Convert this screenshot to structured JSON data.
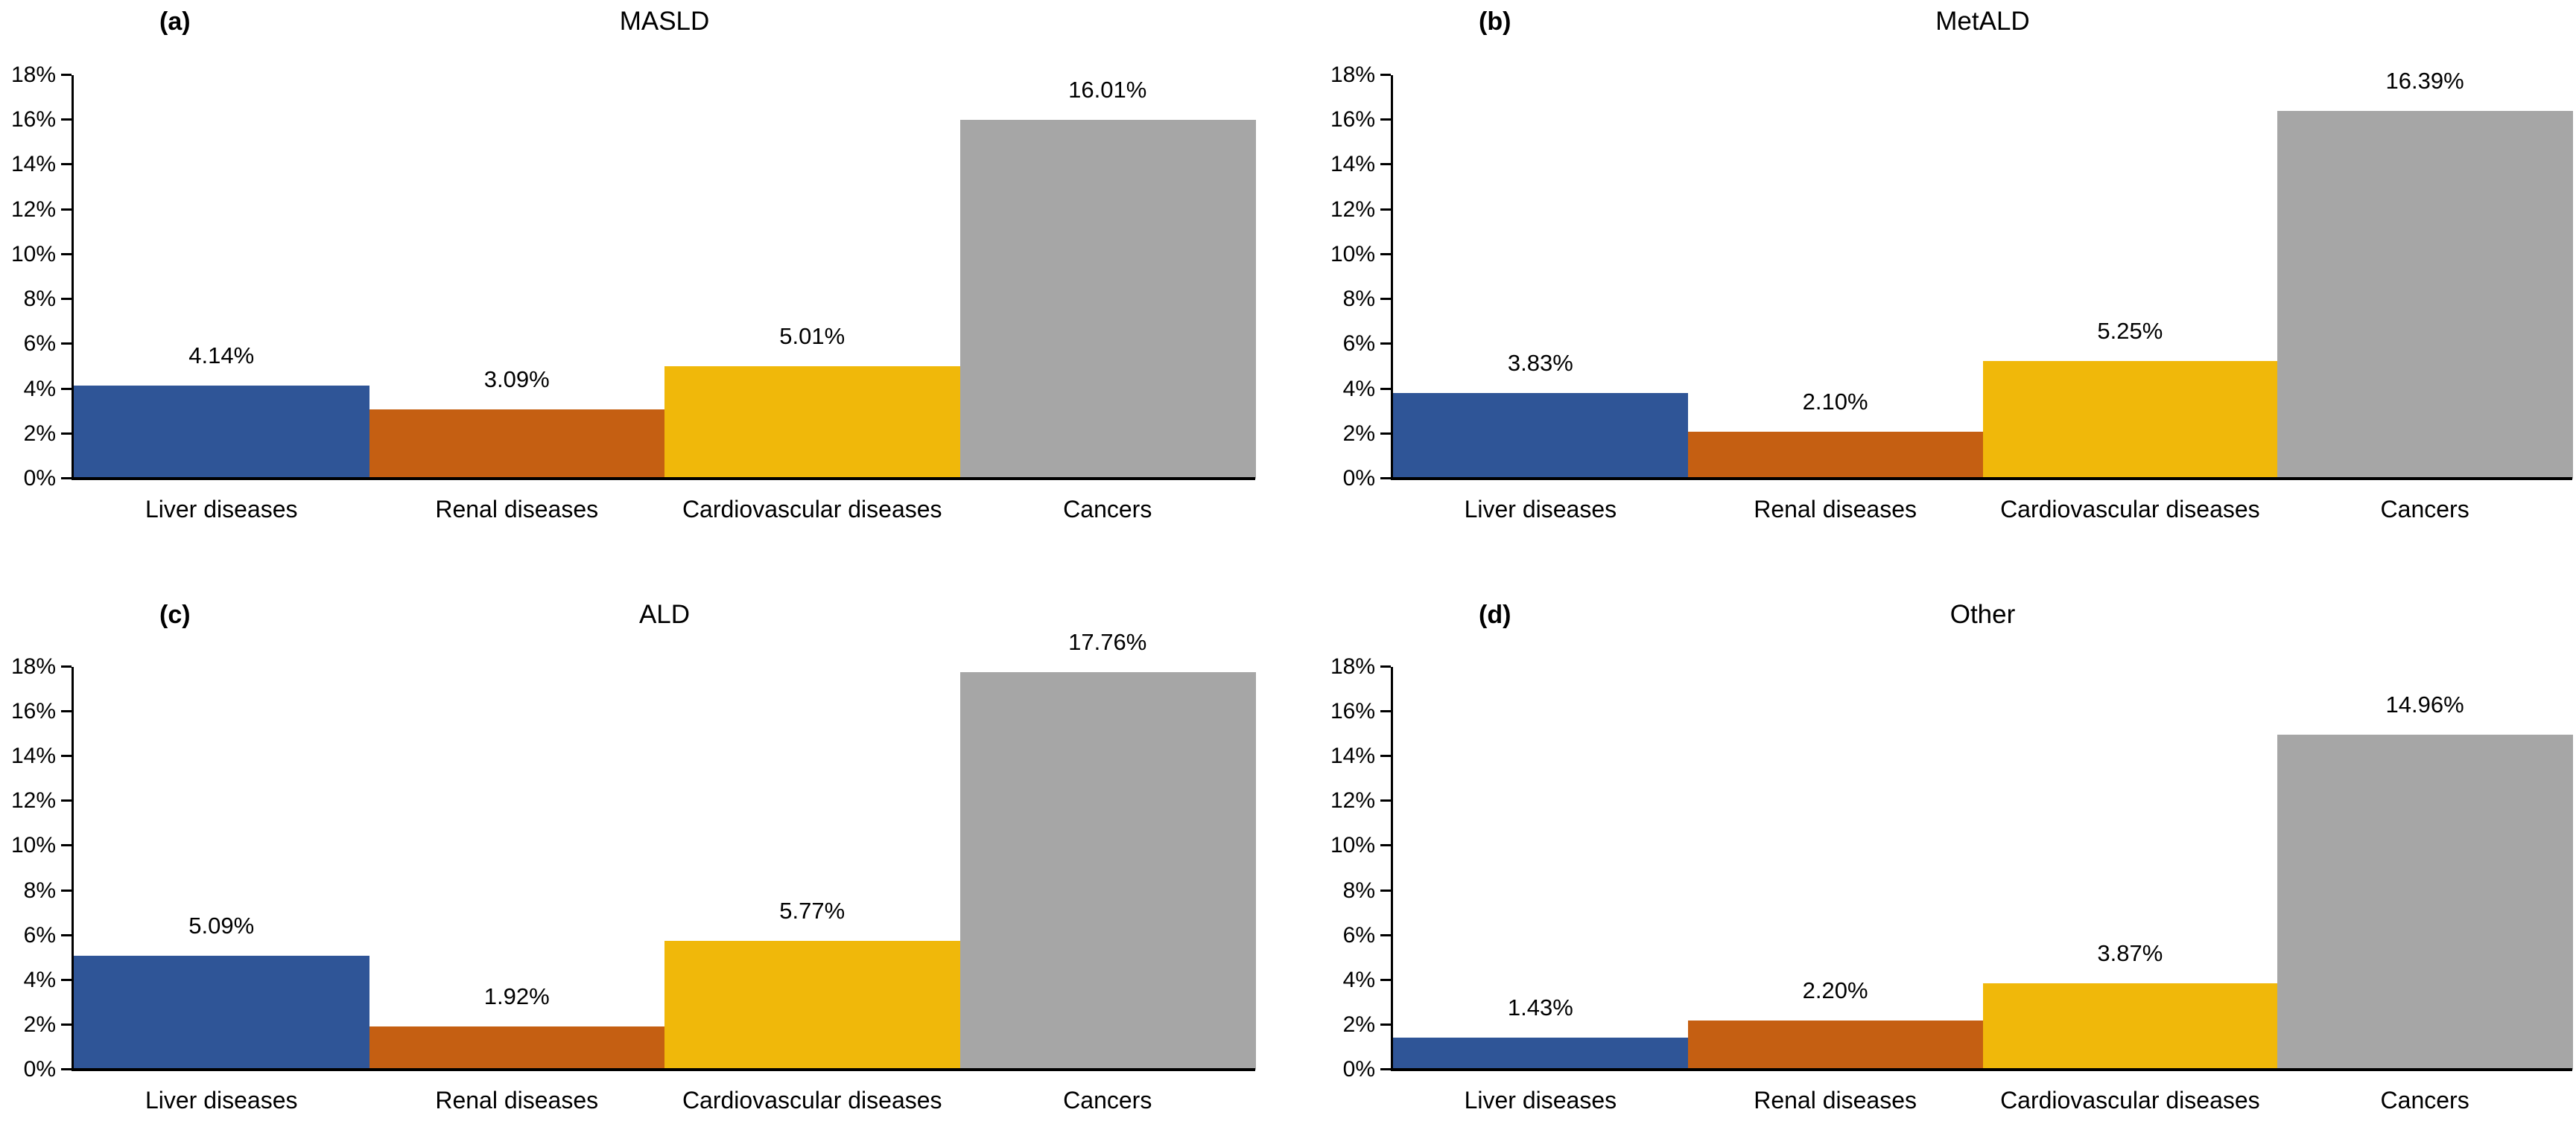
{
  "chart_data": [
    {
      "type": "bar",
      "panel_label": "(a)",
      "title": "MASLD",
      "categories": [
        "Liver diseases",
        "Renal diseases",
        "Cardiovascular diseases",
        "Cancers"
      ],
      "values": [
        4.14,
        3.09,
        5.01,
        16.01
      ],
      "data_labels": [
        "4.14%",
        "3.09%",
        "5.01%",
        "16.01%"
      ],
      "unit": "percent",
      "ylim": [
        0,
        18
      ],
      "ytick_step": 2,
      "ytick_labels": [
        "0%",
        "2%",
        "4%",
        "6%",
        "8%",
        "10%",
        "12%",
        "14%",
        "16%",
        "18%"
      ],
      "grid": false,
      "legend": false,
      "bar_colors": [
        "#2F5597",
        "#C55F12",
        "#F0B80A",
        "#A6A6A6"
      ]
    },
    {
      "type": "bar",
      "panel_label": "(b)",
      "title": "MetALD",
      "categories": [
        "Liver diseases",
        "Renal diseases",
        "Cardiovascular diseases",
        "Cancers"
      ],
      "values": [
        3.83,
        2.1,
        5.25,
        16.39
      ],
      "data_labels": [
        "3.83%",
        "2.10%",
        "5.25%",
        "16.39%"
      ],
      "unit": "percent",
      "ylim": [
        0,
        18
      ],
      "ytick_step": 2,
      "ytick_labels": [
        "0%",
        "2%",
        "4%",
        "6%",
        "8%",
        "10%",
        "12%",
        "14%",
        "16%",
        "18%"
      ],
      "grid": false,
      "legend": false,
      "bar_colors": [
        "#2F5597",
        "#C55F12",
        "#F0B80A",
        "#A6A6A6"
      ]
    },
    {
      "type": "bar",
      "panel_label": "(c)",
      "title": "ALD",
      "categories": [
        "Liver diseases",
        "Renal diseases",
        "Cardiovascular diseases",
        "Cancers"
      ],
      "values": [
        5.09,
        1.92,
        5.77,
        17.76
      ],
      "data_labels": [
        "5.09%",
        "1.92%",
        "5.77%",
        "17.76%"
      ],
      "unit": "percent",
      "ylim": [
        0,
        18
      ],
      "ytick_step": 2,
      "ytick_labels": [
        "0%",
        "2%",
        "4%",
        "6%",
        "8%",
        "10%",
        "12%",
        "14%",
        "16%",
        "18%"
      ],
      "grid": false,
      "legend": false,
      "bar_colors": [
        "#2F5597",
        "#C55F12",
        "#F0B80A",
        "#A6A6A6"
      ]
    },
    {
      "type": "bar",
      "panel_label": "(d)",
      "title": "Other",
      "categories": [
        "Liver diseases",
        "Renal diseases",
        "Cardiovascular diseases",
        "Cancers"
      ],
      "values": [
        1.43,
        2.2,
        3.87,
        14.96
      ],
      "data_labels": [
        "1.43%",
        "2.20%",
        "3.87%",
        "14.96%"
      ],
      "unit": "percent",
      "ylim": [
        0,
        18
      ],
      "ytick_step": 2,
      "ytick_labels": [
        "0%",
        "2%",
        "4%",
        "6%",
        "8%",
        "10%",
        "12%",
        "14%",
        "16%",
        "18%"
      ],
      "grid": false,
      "legend": false,
      "bar_colors": [
        "#2F5597",
        "#C55F12",
        "#F0B80A",
        "#A6A6A6"
      ]
    }
  ]
}
